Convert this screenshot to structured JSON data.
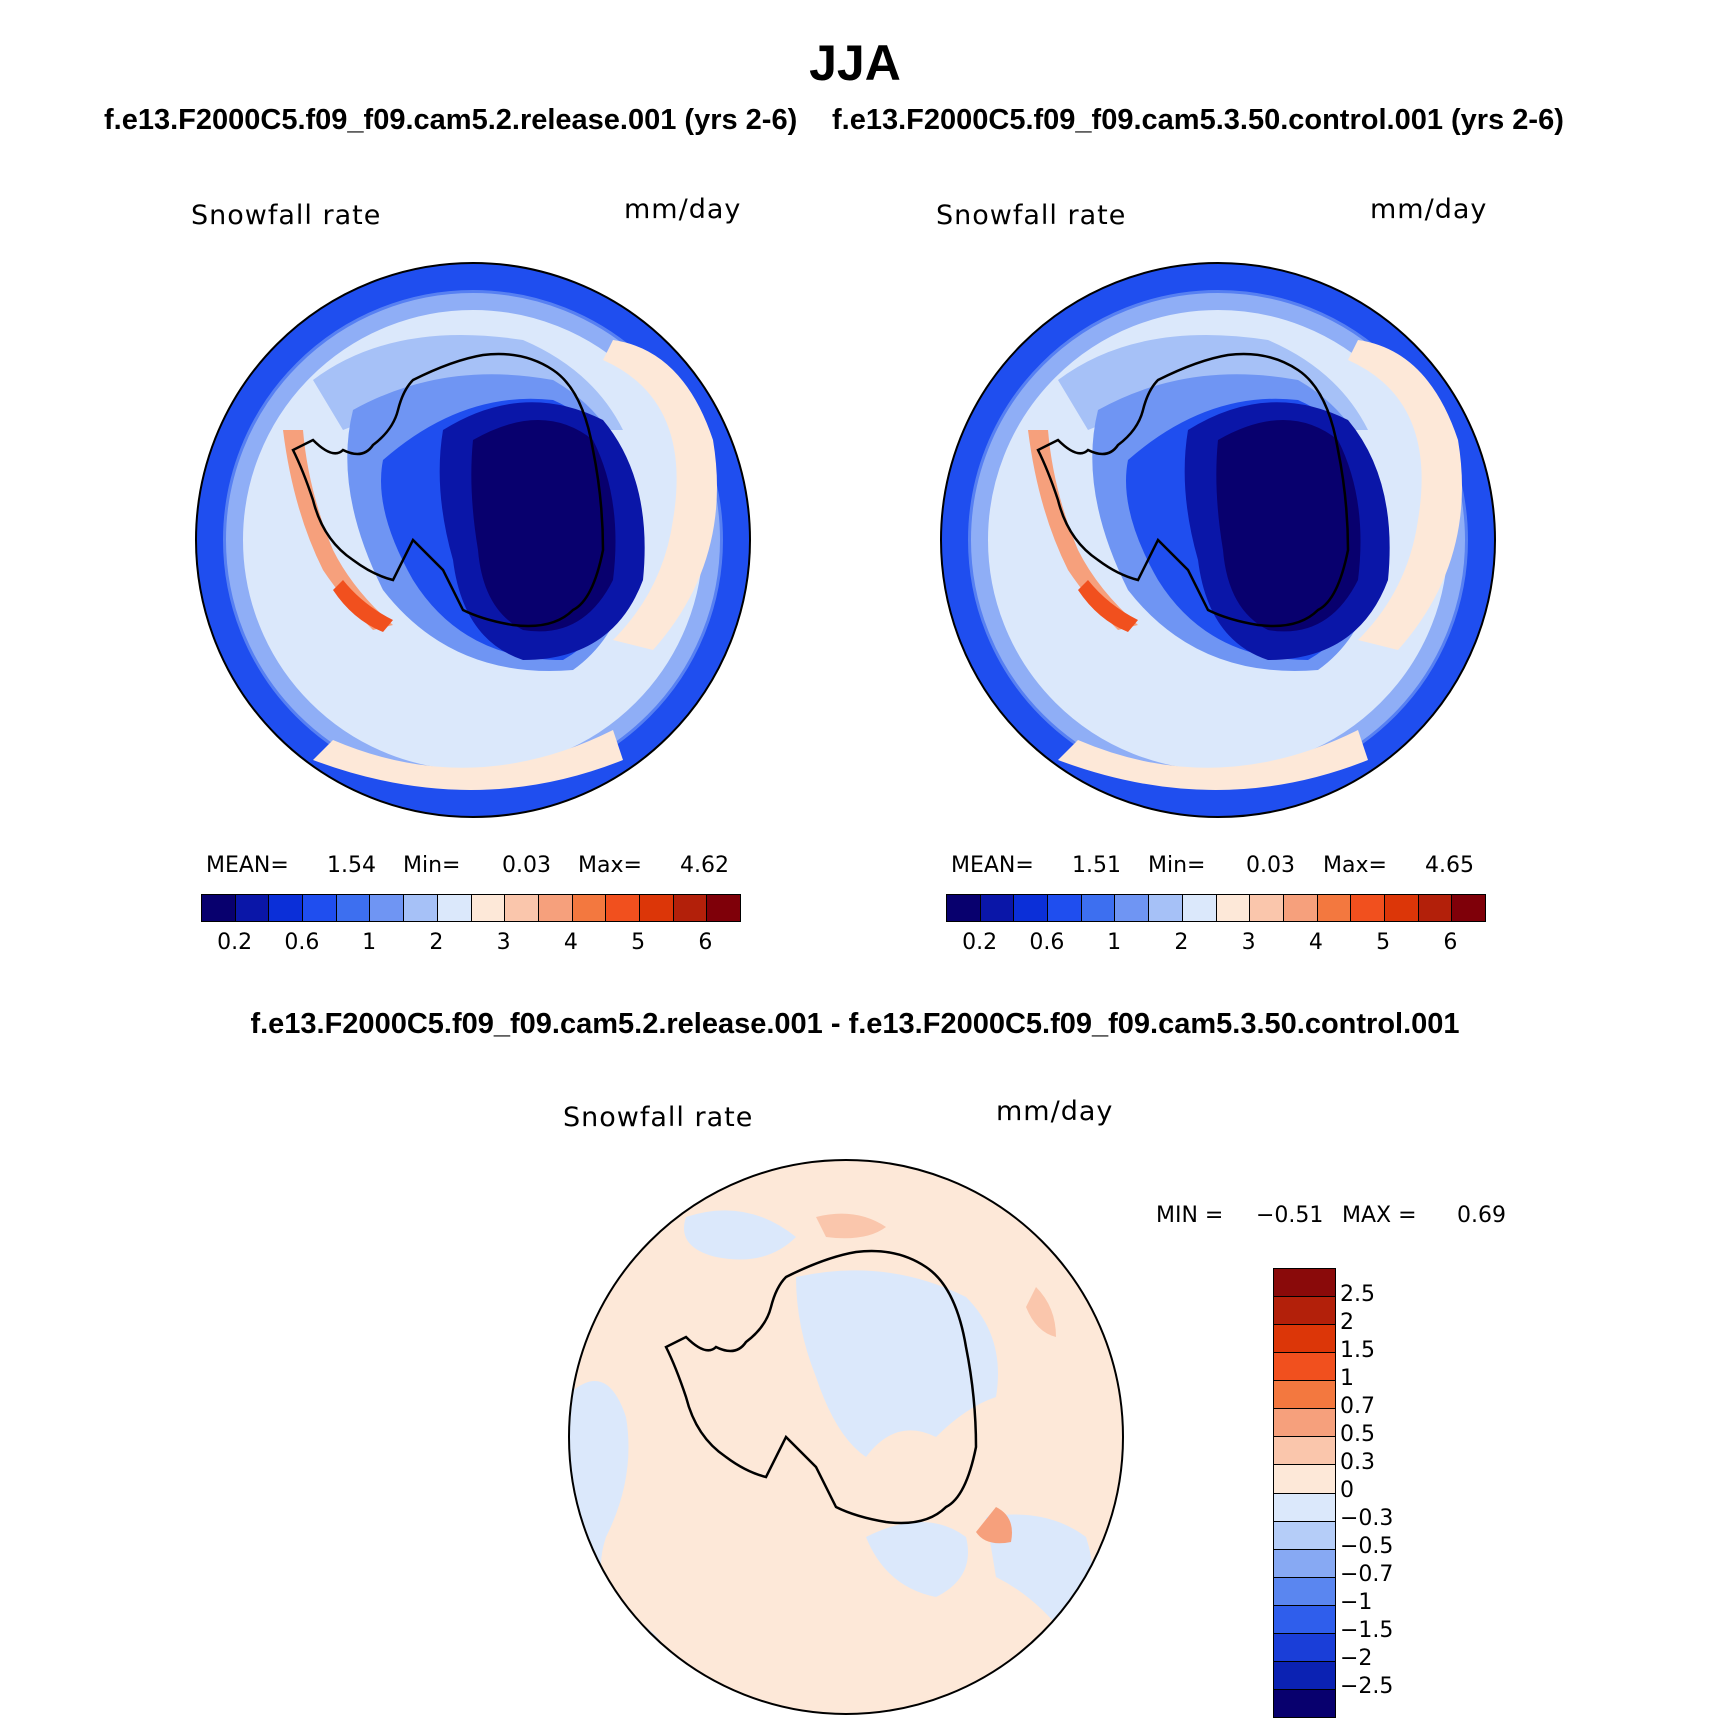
{
  "header": {
    "season": "JJA",
    "left_subtitle": "f.e13.F2000C5.f09_f09.cam5.2.release.001 (yrs 2-6)",
    "right_subtitle": "f.e13.F2000C5.f09_f09.cam5.3.50.control.001 (yrs 2-6)",
    "diff_title": "f.e13.F2000C5.f09_f09.cam5.2.release.001 - f.e13.F2000C5.f09_f09.cam5.3.50.control.001"
  },
  "panels": {
    "left": {
      "variable": "Snowfall rate",
      "units": "mm/day",
      "mean_label": "MEAN=",
      "mean": "1.54",
      "min_label": "Min=",
      "min": "0.03",
      "max_label": "Max=",
      "max": "4.62"
    },
    "right": {
      "variable": "Snowfall rate",
      "units": "mm/day",
      "mean_label": "MEAN=",
      "mean": "1.51",
      "min_label": "Min=",
      "min": "0.03",
      "max_label": "Max=",
      "max": "4.65"
    },
    "diff": {
      "variable": "Snowfall rate",
      "units": "mm/day",
      "min_label": "MIN =",
      "min": "−0.51",
      "max_label": "MAX =",
      "max": "0.69"
    }
  },
  "colorbar_abs": {
    "colors": [
      "#08006e",
      "#0a16a8",
      "#0b2fd8",
      "#1f4eef",
      "#3d6ff0",
      "#6f95f3",
      "#a6c1f7",
      "#dbe8fb",
      "#fde8d8",
      "#fac6ac",
      "#f6a07c",
      "#f3783f",
      "#f1501e",
      "#dc3608",
      "#b3200a",
      "#7f0009"
    ],
    "tick_labels": [
      "0.2",
      "0.6",
      "1",
      "2",
      "3",
      "4",
      "5",
      "6"
    ]
  },
  "colorbar_diff": {
    "colors": [
      "#8a0a0a",
      "#b3200a",
      "#dc3608",
      "#f1501e",
      "#f3783f",
      "#f6a07c",
      "#fac6ac",
      "#fde8d8",
      "#dbe8fb",
      "#b5cdf8",
      "#87a9f3",
      "#5a86f0",
      "#2f5eec",
      "#1a3ed8",
      "#0b22b3",
      "#08006e"
    ],
    "tick_labels": [
      "2.5",
      "2",
      "1.5",
      "1",
      "0.7",
      "0.5",
      "0.3",
      "0",
      "−0.3",
      "−0.5",
      "−0.7",
      "−1",
      "−1.5",
      "−2",
      "−2.5"
    ]
  }
}
